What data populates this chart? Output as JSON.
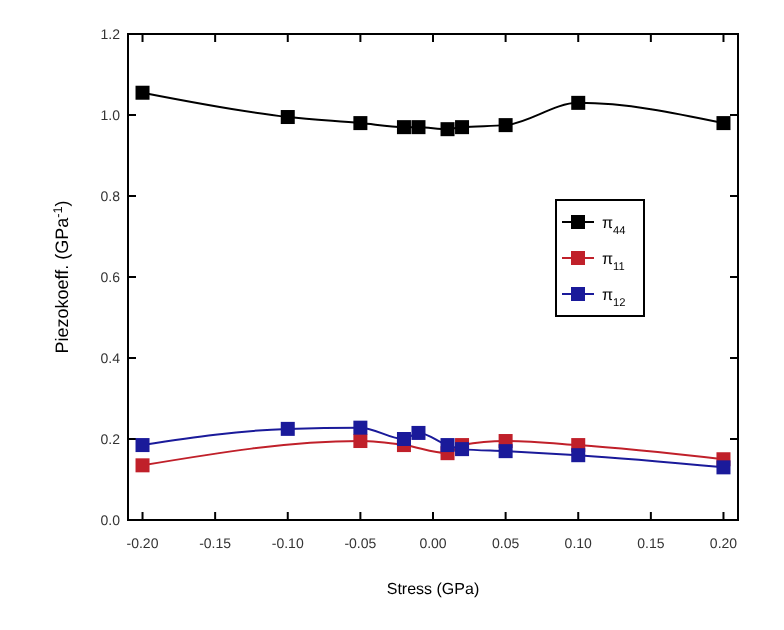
{
  "chart_data": {
    "type": "line",
    "xlabel": "Stress (GPa)",
    "ylabel": "Piezokoeff. (GPa$^{-1}$)",
    "xlim": [
      -0.21,
      0.21
    ],
    "ylim": [
      0,
      1.2
    ],
    "xticks": [
      {
        "value": -0.2,
        "label": "-0.20"
      },
      {
        "value": -0.15,
        "label": "-0.15"
      },
      {
        "value": -0.1,
        "label": "-0.10"
      },
      {
        "value": -0.05,
        "label": "-0.05"
      },
      {
        "value": 0,
        "label": "0.00"
      },
      {
        "value": 0.05,
        "label": "0.05"
      },
      {
        "value": 0.1,
        "label": "0.10"
      },
      {
        "value": 0.15,
        "label": "0.15"
      },
      {
        "value": 0.2,
        "label": "0.20"
      }
    ],
    "yticks": [
      {
        "value": 0,
        "label": "0.0"
      },
      {
        "value": 0.2,
        "label": "0.2"
      },
      {
        "value": 0.4,
        "label": "0.4"
      },
      {
        "value": 0.6,
        "label": "0.6"
      },
      {
        "value": 0.8,
        "label": "0.8"
      },
      {
        "value": 1,
        "label": "1.0"
      },
      {
        "value": 1.2,
        "label": "1.2"
      }
    ],
    "grid": false,
    "legend": "right",
    "marker": "square",
    "line_style": "solid",
    "series": [
      {
        "name": "π$_{44}$",
        "color": "#000000",
        "x": [
          -0.2,
          -0.1,
          -0.05,
          -0.02,
          -0.01,
          0.01,
          0.02,
          0.05,
          0.1,
          0.2
        ],
        "values": [
          1.055,
          0.995,
          0.98,
          0.97,
          0.97,
          0.965,
          0.97,
          0.975,
          1.03,
          0.98
        ]
      },
      {
        "name": "π$_{11}$",
        "color": "#c0202a",
        "x": [
          -0.2,
          -0.05,
          -0.02,
          0.01,
          0.02,
          0.05,
          0.1,
          0.2
        ],
        "values": [
          0.135,
          0.195,
          0.185,
          0.165,
          0.185,
          0.195,
          0.185,
          0.15
        ]
      },
      {
        "name": "π$_{12}$",
        "color": "#1a1a9a",
        "x": [
          -0.2,
          -0.1,
          -0.05,
          -0.02,
          -0.01,
          0.01,
          0.02,
          0.05,
          0.1,
          0.2
        ],
        "values": [
          0.185,
          0.225,
          0.228,
          0.2,
          0.215,
          0.185,
          0.175,
          0.17,
          0.16,
          0.13
        ]
      }
    ]
  }
}
